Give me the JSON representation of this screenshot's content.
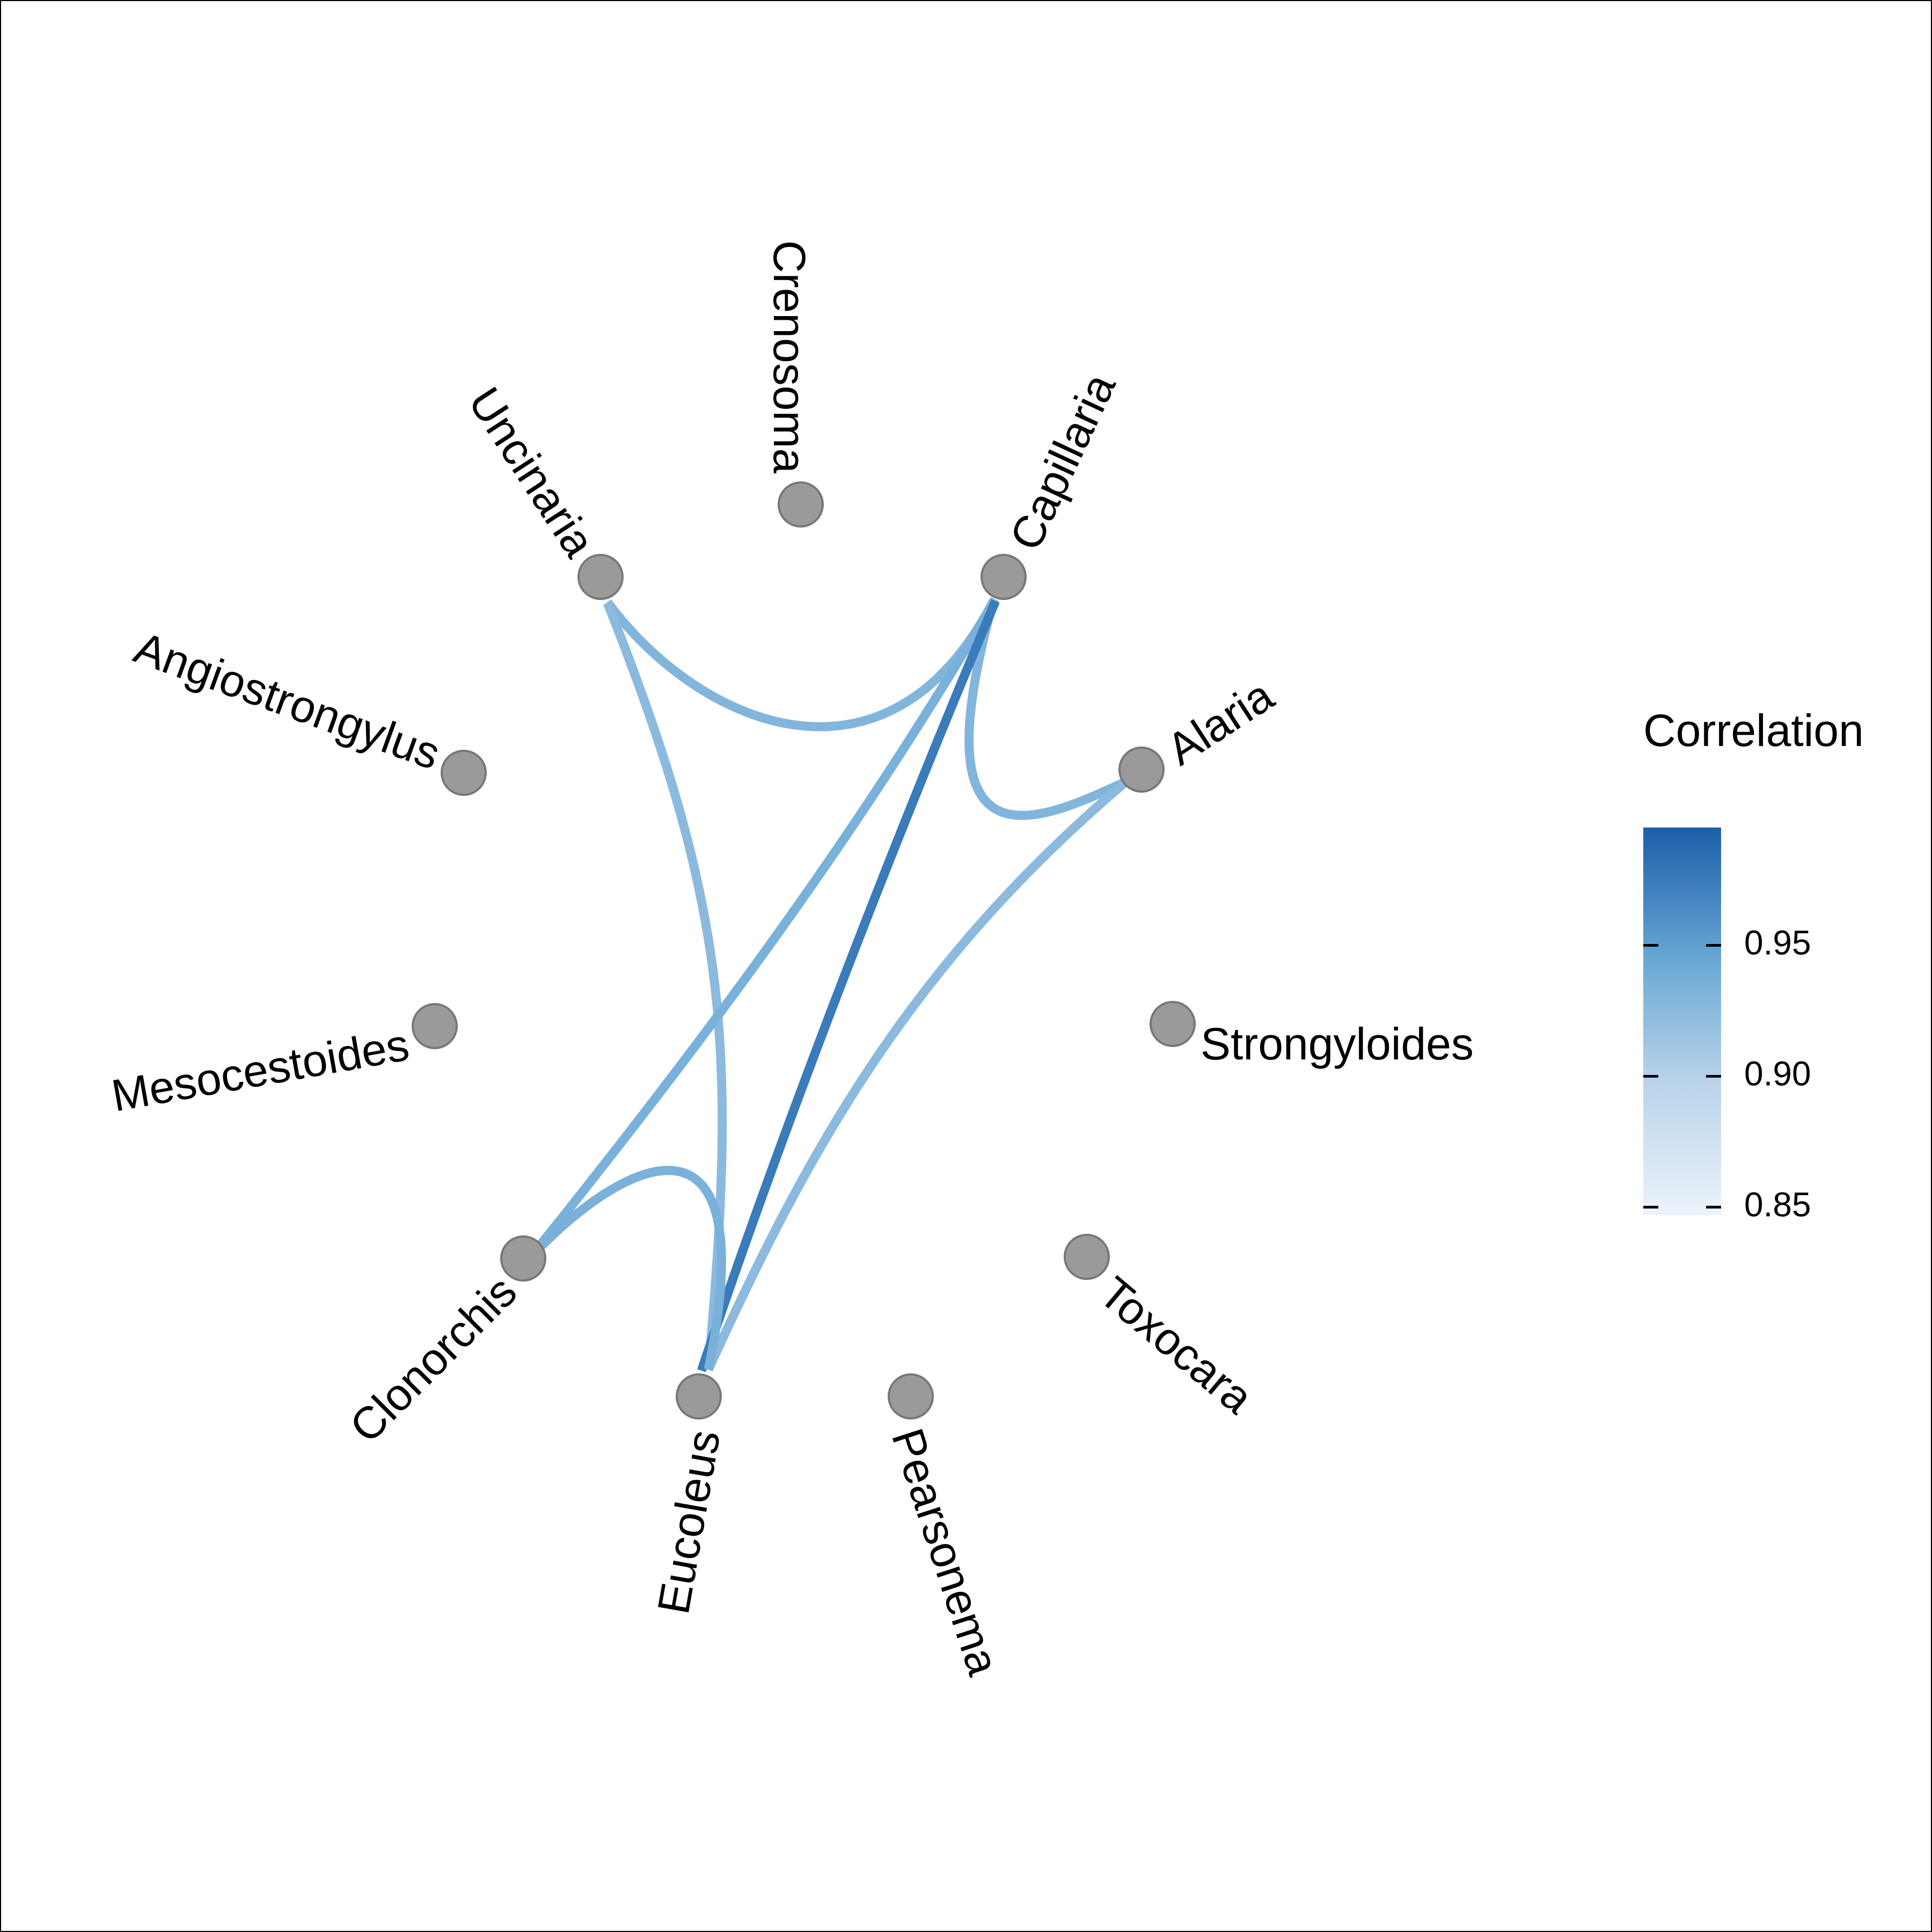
{
  "legend": {
    "title": "Correlation",
    "ticks": [
      0.95,
      0.9,
      0.85
    ],
    "tick_labels": [
      "0.95",
      "0.90",
      "0.85"
    ],
    "min": 0.847,
    "max": 0.995,
    "color_low": "#edf3fc",
    "color_high": "#1b5ea9"
  },
  "node_color": "#9a9a9a",
  "node_stroke": "#777777",
  "nodes": [
    {
      "id": "crenosoma",
      "label": "Crenosoma"
    },
    {
      "id": "capillaria",
      "label": "Capillaria"
    },
    {
      "id": "alaria",
      "label": "Alaria"
    },
    {
      "id": "strongyloides",
      "label": "Strongyloides"
    },
    {
      "id": "toxocara",
      "label": "Toxocara"
    },
    {
      "id": "pearsonema",
      "label": "Pearsonema"
    },
    {
      "id": "eucoleus",
      "label": "Eucoleus"
    },
    {
      "id": "clonorchis",
      "label": "Clonorchis"
    },
    {
      "id": "mesocestoides",
      "label": "Mesocestoides"
    },
    {
      "id": "angiostrongylus",
      "label": "Angiostrongylus"
    },
    {
      "id": "uncinaria",
      "label": "Uncinaria"
    }
  ],
  "edges": [
    {
      "from": "uncinaria",
      "to": "capillaria",
      "correlation": 0.93
    },
    {
      "from": "uncinaria",
      "to": "eucoleus",
      "correlation": 0.925
    },
    {
      "from": "capillaria",
      "to": "alaria",
      "correlation": 0.93
    },
    {
      "from": "capillaria",
      "to": "clonorchis",
      "correlation": 0.935
    },
    {
      "from": "capillaria",
      "to": "eucoleus",
      "correlation": 0.975
    },
    {
      "from": "alaria",
      "to": "eucoleus",
      "correlation": 0.925
    },
    {
      "from": "clonorchis",
      "to": "eucoleus",
      "correlation": 0.935
    }
  ]
}
